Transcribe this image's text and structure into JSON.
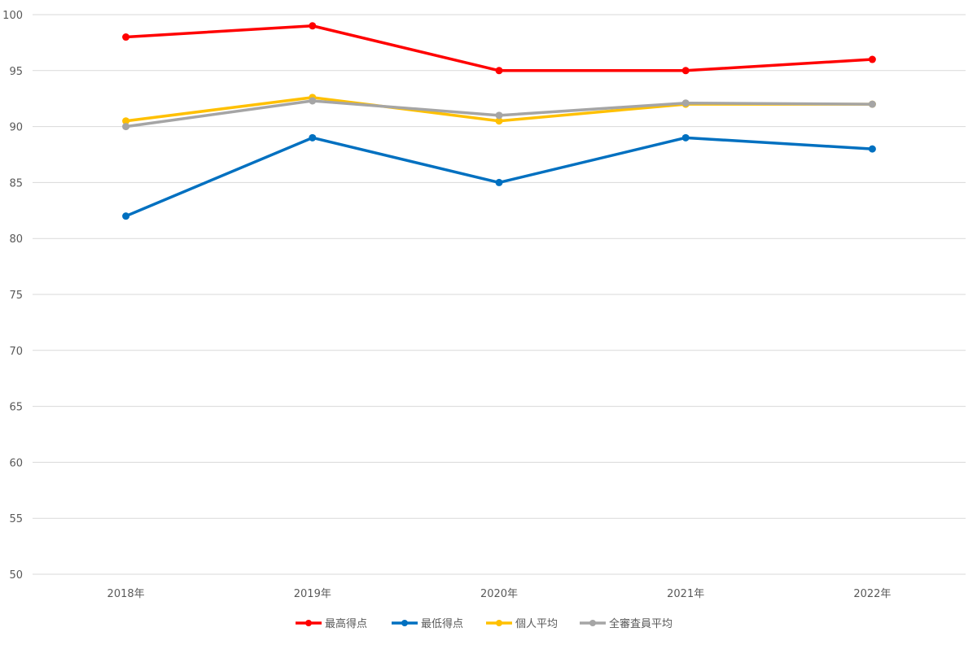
{
  "chart_data": {
    "type": "line",
    "categories": [
      "2018年",
      "2019年",
      "2020年",
      "2021年",
      "2022年"
    ],
    "series": [
      {
        "name": "最高得点",
        "color": "#ff0000",
        "values": [
          98,
          99,
          95,
          95,
          96
        ]
      },
      {
        "name": "最低得点",
        "color": "#0070c0",
        "values": [
          82,
          89,
          85,
          89,
          88
        ]
      },
      {
        "name": "個人平均",
        "color": "#ffc000",
        "values": [
          90.5,
          92.6,
          90.5,
          92.0,
          92.0
        ]
      },
      {
        "name": "全審査員平均",
        "color": "#a5a5a5",
        "values": [
          90.0,
          92.3,
          91.0,
          92.1,
          92.0
        ]
      }
    ],
    "ylim": [
      50,
      100
    ],
    "yticks": [
      50,
      55,
      60,
      65,
      70,
      75,
      80,
      85,
      90,
      95,
      100
    ],
    "grid": true,
    "legend_position": "bottom"
  }
}
